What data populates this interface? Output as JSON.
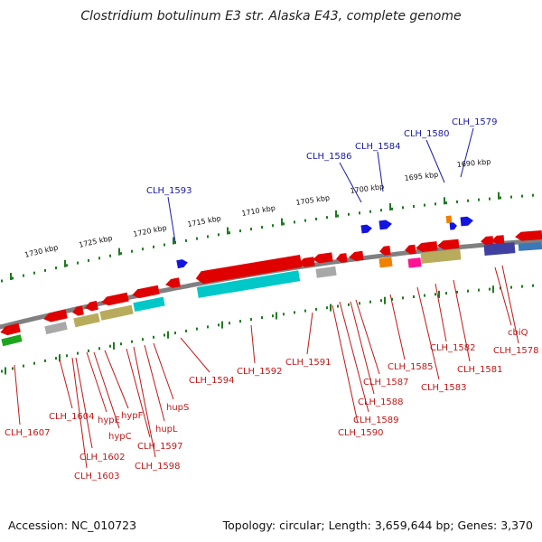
{
  "title": "Clostridium botulinum E3 str. Alaska E43, complete genome",
  "accession": "Accession: NC_010723",
  "summary": "Topology: circular; Length: 3,659,644 bp; Genes: 3,370",
  "kbp_labels": [
    "1730 kbp",
    "1725 kbp",
    "1720 kbp",
    "1715 kbp",
    "1710 kbp",
    "1705 kbp",
    "1700 kbp",
    "1695 kbp",
    "1690 kbp"
  ],
  "gene_labels_top": [
    "CLH_1593",
    "CLH_1586",
    "CLH_1584",
    "CLH_1580",
    "CLH_1579"
  ],
  "gene_labels_bottom": [
    "CLH_1607",
    "CLH_1604",
    "CLH_1602",
    "CLH_1603",
    "hypE",
    "hypC",
    "hypF",
    "CLH_1597",
    "CLH_1598",
    "hupL",
    "hupS",
    "CLH_1594",
    "CLH_1592",
    "CLH_1591",
    "CLH_1590",
    "CLH_1589",
    "CLH_1588",
    "CLH_1587",
    "CLH_1585",
    "CLH_1583",
    "CLH_1582",
    "CLH_1581",
    "cbiQ",
    "CLH_1578"
  ],
  "colors": {
    "backbone": "#808080",
    "forward_feature": "#1414e0",
    "reverse_feature": "#e00000",
    "label_forward": "#1a1aa6",
    "label_reverse": "#c01818",
    "tick": "#1f7a1f",
    "cog_cyan": "#00c8c8",
    "cog_olive": "#b8ac5c",
    "cog_gray": "#a8a8a8",
    "cog_magenta": "#ff1493",
    "cog_orange": "#f08000",
    "cog_navy": "#4040a0",
    "cog_green": "#1ea51e"
  }
}
